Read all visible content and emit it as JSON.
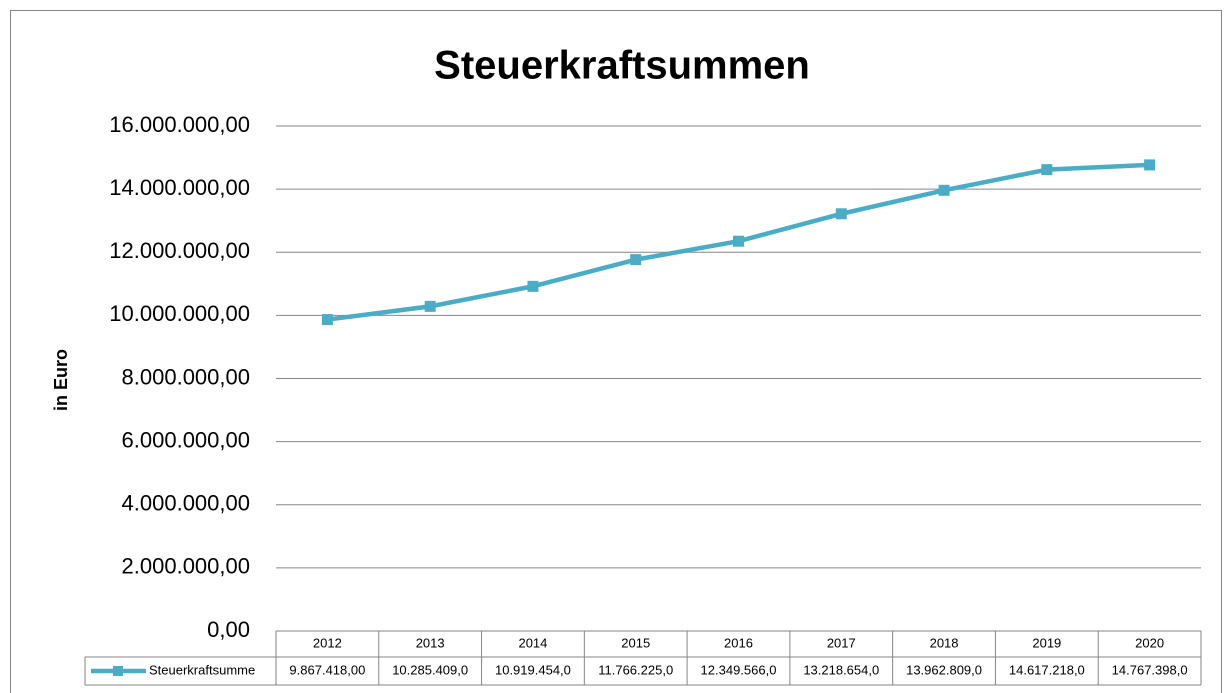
{
  "chart_data": {
    "type": "line",
    "title": "Steuerkraftsummen",
    "y_label": "in Euro",
    "categories": [
      "2012",
      "2013",
      "2014",
      "2015",
      "2016",
      "2017",
      "2018",
      "2019",
      "2020"
    ],
    "series": [
      {
        "name": "Steuerkraftsumme",
        "color": "#4bacc6",
        "values": [
          9867418,
          10285409,
          10919454,
          11766225,
          12349566,
          13218654,
          13962809,
          14617218,
          14767398
        ],
        "value_labels": [
          "9.867.418,00",
          "10.285.409,0",
          "10.919.454,0",
          "11.766.225,0",
          "12.349.566,0",
          "13.218.654,0",
          "13.962.809,0",
          "14.617.218,0",
          "14.767.398,0"
        ]
      }
    ],
    "ylim": [
      0,
      16000000
    ],
    "yticks": [
      {
        "value": 0,
        "label": "0,00"
      },
      {
        "value": 2000000,
        "label": "2.000.000,00"
      },
      {
        "value": 4000000,
        "label": "4.000.000,00"
      },
      {
        "value": 6000000,
        "label": "6.000.000,00"
      },
      {
        "value": 8000000,
        "label": "8.000.000,00"
      },
      {
        "value": 10000000,
        "label": "10.000.000,00"
      },
      {
        "value": 12000000,
        "label": "12.000.000,00"
      },
      {
        "value": 14000000,
        "label": "14.000.000,00"
      },
      {
        "value": 16000000,
        "label": "16.000.000,00"
      }
    ],
    "grid": true
  }
}
